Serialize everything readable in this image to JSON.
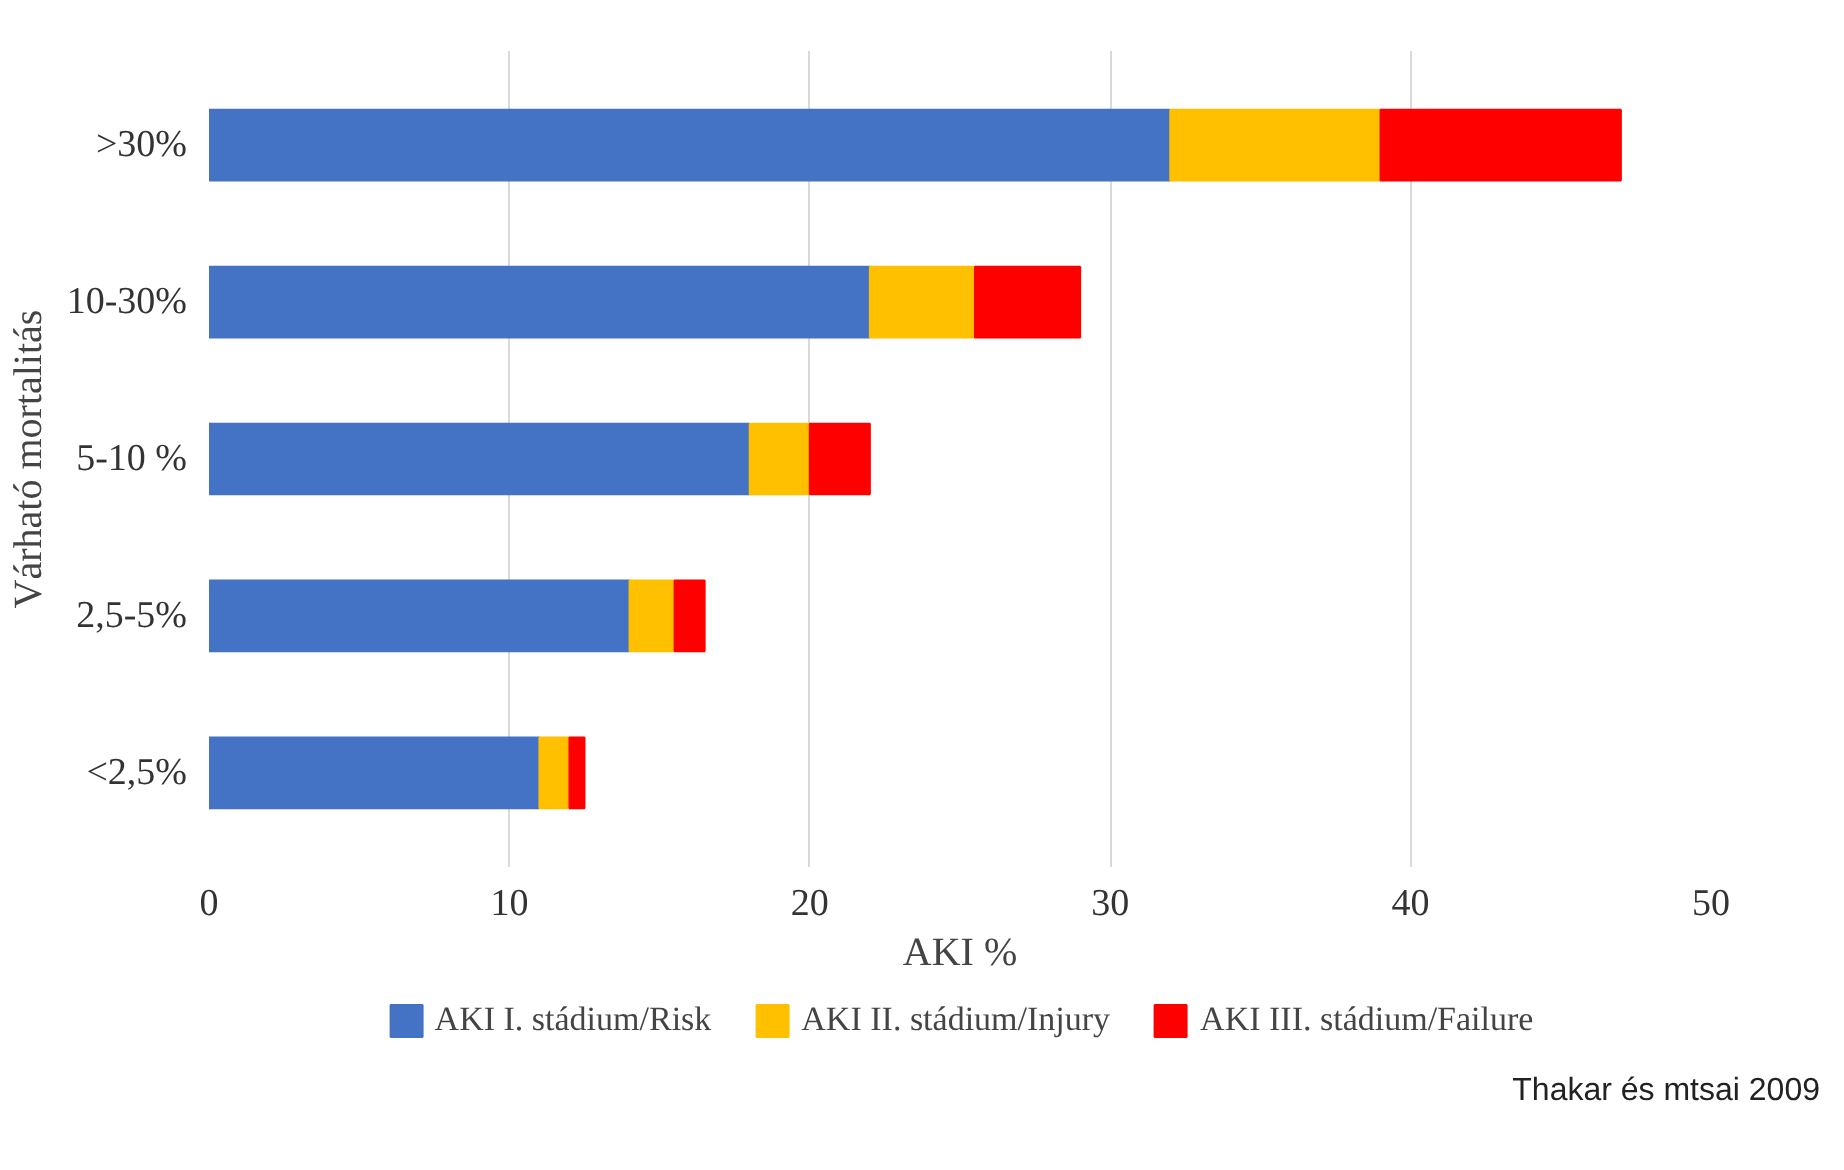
{
  "chart_data": {
    "type": "bar",
    "orientation": "horizontal",
    "stacked": true,
    "xlabel": "AKI %",
    "ylabel": "Várható mortalitás",
    "categories": [
      ">30%",
      "10-30%",
      "5-10 %",
      "2,5-5%",
      "<2,5%"
    ],
    "series": [
      {
        "name": "AKI I. stádium/Risk",
        "color": "#4472c4",
        "values": [
          32,
          22,
          18,
          14,
          11
        ]
      },
      {
        "name": "AKI II. stádium/Injury",
        "color": "#ffc000",
        "values": [
          7,
          3.5,
          2,
          1.5,
          1
        ]
      },
      {
        "name": "AKI III. stádium/Failure",
        "color": "#ff0000",
        "values": [
          8,
          3.5,
          2,
          1,
          0.5
        ]
      }
    ],
    "xlim": [
      0,
      50
    ],
    "xticks": [
      0,
      10,
      20,
      30,
      40,
      50
    ],
    "grid": "x",
    "legend": "bottom",
    "annotations": [
      "Thakar és mtsai 2009"
    ]
  }
}
